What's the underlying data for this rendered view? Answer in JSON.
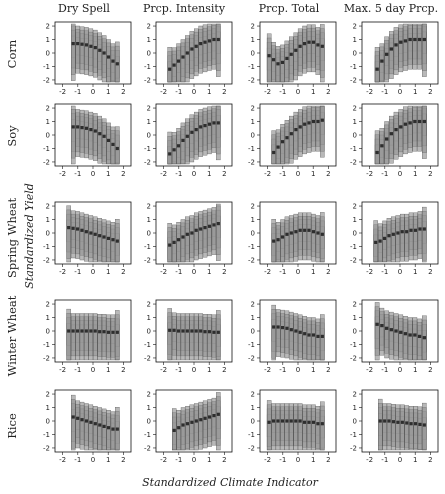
{
  "chart_data": {
    "type": "box",
    "xlabel": "Standardized Climate Indicator",
    "ylabel": "Standardized Yield",
    "xlim": [
      -2.5,
      2.5
    ],
    "ylim": [
      -2.3,
      2.3
    ],
    "xticks": [
      "-2",
      "-1",
      "0",
      "1",
      "2"
    ],
    "yticks": [
      "-2",
      "-1",
      "0",
      "1",
      "2"
    ],
    "columns": [
      "Dry Spell",
      "Prcp. Intensity",
      "Prcp. Total",
      "Max. 5 day Prcp."
    ],
    "rows": [
      "Corn",
      "Soy",
      "Spring Wheat",
      "Winter Wheat",
      "Rice"
    ],
    "panels": [
      {
        "row": "Corn",
        "column": "Dry Spell",
        "x_range": [
          -1.3,
          1.6
        ],
        "medians": [
          0.7,
          0.7,
          0.65,
          0.6,
          0.5,
          0.4,
          0.2,
          0.0,
          -0.3,
          -0.6,
          -0.8
        ]
      },
      {
        "row": "Corn",
        "column": "Prcp. Intensity",
        "x_range": [
          -1.6,
          1.6
        ],
        "medians": [
          -1.2,
          -0.9,
          -0.6,
          -0.3,
          0.0,
          0.3,
          0.5,
          0.7,
          0.8,
          0.9,
          1.0,
          1.0
        ]
      },
      {
        "row": "Corn",
        "column": "Prcp. Total",
        "x_range": [
          -1.9,
          1.6
        ],
        "medians": [
          -0.2,
          -0.5,
          -0.8,
          -0.7,
          -0.4,
          -0.1,
          0.2,
          0.5,
          0.7,
          0.8,
          0.8,
          0.6,
          0.5
        ]
      },
      {
        "row": "Corn",
        "column": "Max. 5 day Prcp.",
        "x_range": [
          -1.5,
          1.6
        ],
        "medians": [
          -1.2,
          -0.6,
          -0.1,
          0.3,
          0.6,
          0.8,
          0.9,
          1.0,
          1.0,
          1.0,
          1.0
        ]
      },
      {
        "row": "Soy",
        "column": "Dry Spell",
        "x_range": [
          -1.3,
          1.6
        ],
        "medians": [
          0.6,
          0.6,
          0.55,
          0.5,
          0.4,
          0.3,
          0.1,
          -0.1,
          -0.4,
          -0.7,
          -1.0
        ]
      },
      {
        "row": "Soy",
        "column": "Prcp. Intensity",
        "x_range": [
          -1.6,
          1.6
        ],
        "medians": [
          -1.4,
          -1.1,
          -0.8,
          -0.4,
          -0.1,
          0.2,
          0.4,
          0.6,
          0.7,
          0.8,
          0.9,
          0.9
        ]
      },
      {
        "row": "Soy",
        "column": "Prcp. Total",
        "x_range": [
          -1.6,
          1.6
        ],
        "medians": [
          -1.3,
          -0.9,
          -0.5,
          -0.2,
          0.1,
          0.4,
          0.6,
          0.8,
          0.9,
          1.0,
          1.0,
          1.1
        ]
      },
      {
        "row": "Soy",
        "column": "Max. 5 day Prcp.",
        "x_range": [
          -1.5,
          1.6
        ],
        "medians": [
          -1.3,
          -0.8,
          -0.3,
          0.1,
          0.4,
          0.6,
          0.8,
          0.9,
          1.0,
          1.0,
          1.0
        ]
      },
      {
        "row": "Spring Wheat",
        "column": "Dry Spell",
        "x_range": [
          -1.6,
          1.6
        ],
        "medians": [
          0.4,
          0.35,
          0.3,
          0.2,
          0.1,
          0.0,
          -0.1,
          -0.2,
          -0.3,
          -0.4,
          -0.5,
          -0.6
        ]
      },
      {
        "row": "Spring Wheat",
        "column": "Prcp. Intensity",
        "x_range": [
          -1.6,
          1.6
        ],
        "medians": [
          -0.9,
          -0.7,
          -0.5,
          -0.3,
          -0.1,
          0.0,
          0.2,
          0.3,
          0.4,
          0.5,
          0.6,
          0.7
        ]
      },
      {
        "row": "Spring Wheat",
        "column": "Prcp. Total",
        "x_range": [
          -1.6,
          1.6
        ],
        "medians": [
          -0.6,
          -0.5,
          -0.3,
          -0.1,
          0.0,
          0.1,
          0.2,
          0.2,
          0.2,
          0.1,
          0.0,
          -0.1
        ]
      },
      {
        "row": "Spring Wheat",
        "column": "Max. 5 day Prcp.",
        "x_range": [
          -1.6,
          1.6
        ],
        "medians": [
          -0.7,
          -0.6,
          -0.4,
          -0.2,
          -0.1,
          0.0,
          0.1,
          0.1,
          0.2,
          0.2,
          0.3,
          0.3
        ]
      },
      {
        "row": "Winter Wheat",
        "column": "Dry Spell",
        "x_range": [
          -1.6,
          1.6
        ],
        "medians": [
          0.0,
          0.0,
          0.0,
          0.0,
          0.0,
          0.0,
          0.0,
          -0.05,
          -0.05,
          -0.1,
          -0.1,
          -0.1
        ]
      },
      {
        "row": "Winter Wheat",
        "column": "Prcp. Intensity",
        "x_range": [
          -1.6,
          1.6
        ],
        "medians": [
          0.05,
          0.05,
          0.0,
          0.0,
          0.0,
          0.0,
          0.0,
          0.0,
          -0.05,
          -0.05,
          -0.1,
          -0.1
        ]
      },
      {
        "row": "Winter Wheat",
        "column": "Prcp. Total",
        "x_range": [
          -1.6,
          1.6
        ],
        "medians": [
          0.3,
          0.3,
          0.25,
          0.2,
          0.1,
          0.0,
          -0.1,
          -0.2,
          -0.3,
          -0.3,
          -0.4,
          -0.4
        ]
      },
      {
        "row": "Winter Wheat",
        "column": "Max. 5 day Prcp.",
        "x_range": [
          -1.5,
          1.6
        ],
        "medians": [
          0.5,
          0.4,
          0.2,
          0.1,
          0.0,
          -0.1,
          -0.2,
          -0.3,
          -0.3,
          -0.4,
          -0.5
        ]
      },
      {
        "row": "Rice",
        "column": "Dry Spell",
        "x_range": [
          -1.3,
          1.6
        ],
        "medians": [
          0.3,
          0.2,
          0.1,
          0.0,
          -0.1,
          -0.2,
          -0.3,
          -0.4,
          -0.5,
          -0.6,
          -0.6
        ]
      },
      {
        "row": "Rice",
        "column": "Prcp. Intensity",
        "x_range": [
          -1.3,
          1.6
        ],
        "medians": [
          -0.7,
          -0.5,
          -0.3,
          -0.2,
          -0.1,
          0.0,
          0.1,
          0.2,
          0.3,
          0.4,
          0.5
        ]
      },
      {
        "row": "Rice",
        "column": "Prcp. Total",
        "x_range": [
          -1.9,
          1.6
        ],
        "medians": [
          -0.1,
          0.0,
          0.0,
          0.0,
          0.0,
          0.0,
          0.0,
          0.0,
          -0.1,
          -0.1,
          -0.1,
          -0.2,
          -0.2
        ]
      },
      {
        "row": "Rice",
        "column": "Max. 5 day Prcp.",
        "x_range": [
          -1.3,
          1.6
        ],
        "medians": [
          0.0,
          0.0,
          0.0,
          -0.05,
          -0.1,
          -0.1,
          -0.15,
          -0.2,
          -0.2,
          -0.25,
          -0.3
        ]
      }
    ]
  }
}
